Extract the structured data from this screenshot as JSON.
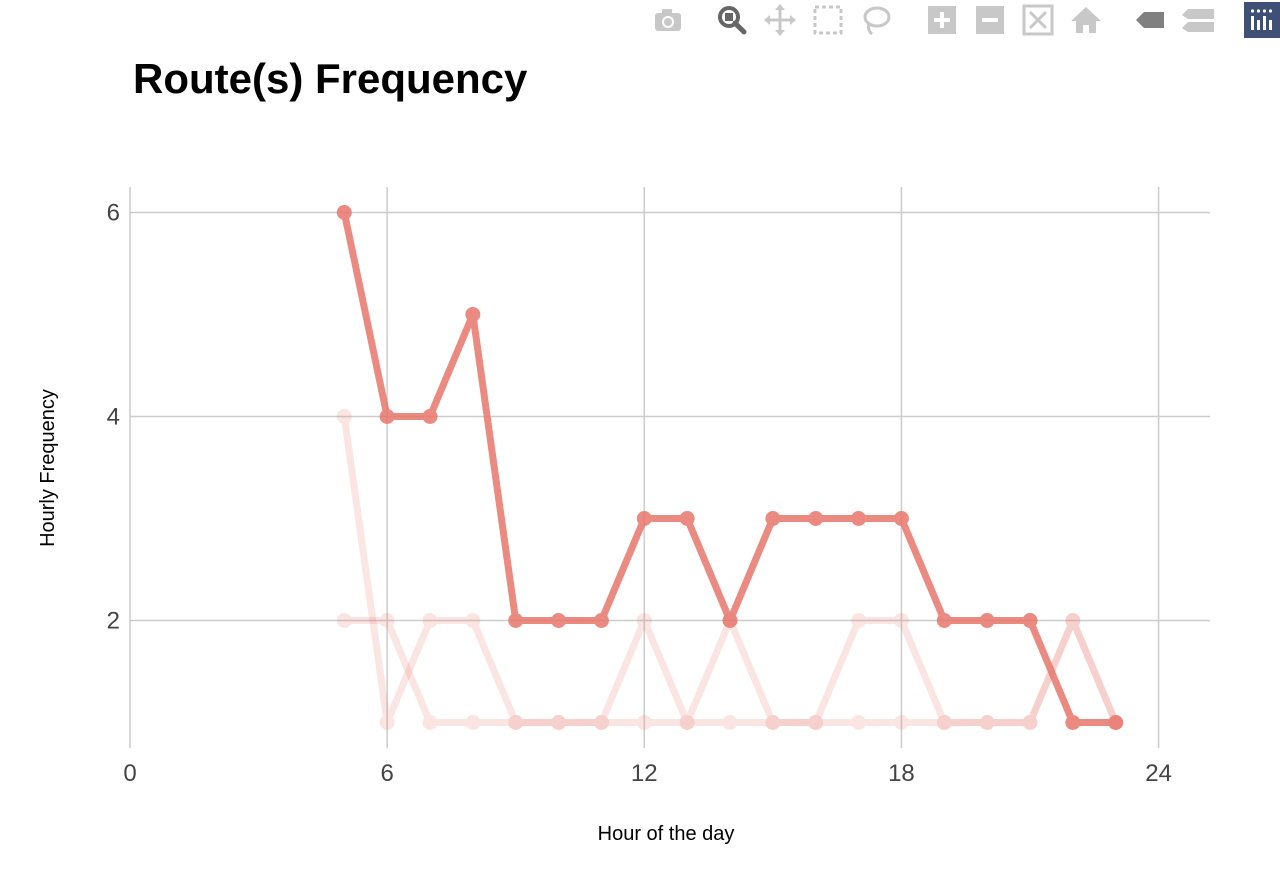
{
  "modebar": {
    "buttons": [
      {
        "name": "camera-icon",
        "label": "Download plot as a png"
      },
      {
        "name": "zoom-icon",
        "label": "Zoom"
      },
      {
        "name": "pan-icon",
        "label": "Pan"
      },
      {
        "name": "box-select-icon",
        "label": "Box Select"
      },
      {
        "name": "lasso-select-icon",
        "label": "Lasso Select"
      },
      {
        "name": "zoom-in-icon",
        "label": "Zoom in"
      },
      {
        "name": "zoom-out-icon",
        "label": "Zoom out"
      },
      {
        "name": "autoscale-icon",
        "label": "Autoscale"
      },
      {
        "name": "home-icon",
        "label": "Reset axes"
      },
      {
        "name": "hover-closest-icon",
        "label": "Show closest data on hover"
      },
      {
        "name": "hover-compare-icon",
        "label": "Compare data on hover"
      },
      {
        "name": "plotly-logo-icon",
        "label": "Produced with Plotly"
      }
    ],
    "active_button": "zoom-icon",
    "colors": {
      "inactive": "#c8c8c8",
      "active": "#666666",
      "logo_bg": "#3f4f75"
    }
  },
  "chart_data": {
    "type": "line",
    "title": "Route(s) Frequency",
    "xlabel": "Hour of the day",
    "ylabel": "Hourly Frequency",
    "xlim": [
      0,
      25.2
    ],
    "ylim": [
      0.75,
      6.25
    ],
    "xticks": [
      0,
      6,
      12,
      18,
      24
    ],
    "yticks": [
      2,
      4,
      6
    ],
    "grid": true,
    "legend": "none",
    "series": [
      {
        "color": "#e8766b",
        "opacity": 0.18,
        "x": [
          5,
          6,
          7,
          8,
          9,
          10,
          11,
          12,
          13,
          14,
          15,
          16,
          17,
          18,
          19,
          20,
          21,
          22,
          23
        ],
        "y": [
          2,
          2,
          1,
          1,
          1,
          1,
          1,
          2,
          1,
          2,
          1,
          1,
          2,
          2,
          1,
          1,
          1,
          2,
          1
        ]
      },
      {
        "color": "#e8766b",
        "opacity": 0.18,
        "x": [
          5,
          6,
          7,
          8,
          9,
          10,
          11,
          12,
          13,
          14,
          15,
          16,
          17,
          18,
          19,
          20,
          21,
          22,
          23
        ],
        "y": [
          4,
          1,
          2,
          2,
          1,
          1,
          1,
          1,
          1,
          1,
          1,
          1,
          1,
          1,
          1,
          1,
          1,
          2,
          1
        ]
      },
      {
        "color": "#e8766b",
        "opacity": 0.85,
        "x": [
          5,
          6,
          7,
          8,
          9,
          10,
          11,
          12,
          13,
          14,
          15,
          16,
          17,
          18,
          19,
          20,
          21,
          22,
          23
        ],
        "y": [
          6,
          4,
          4,
          5,
          2,
          2,
          2,
          3,
          3,
          2,
          3,
          3,
          3,
          3,
          2,
          2,
          2,
          1,
          1
        ]
      }
    ]
  }
}
